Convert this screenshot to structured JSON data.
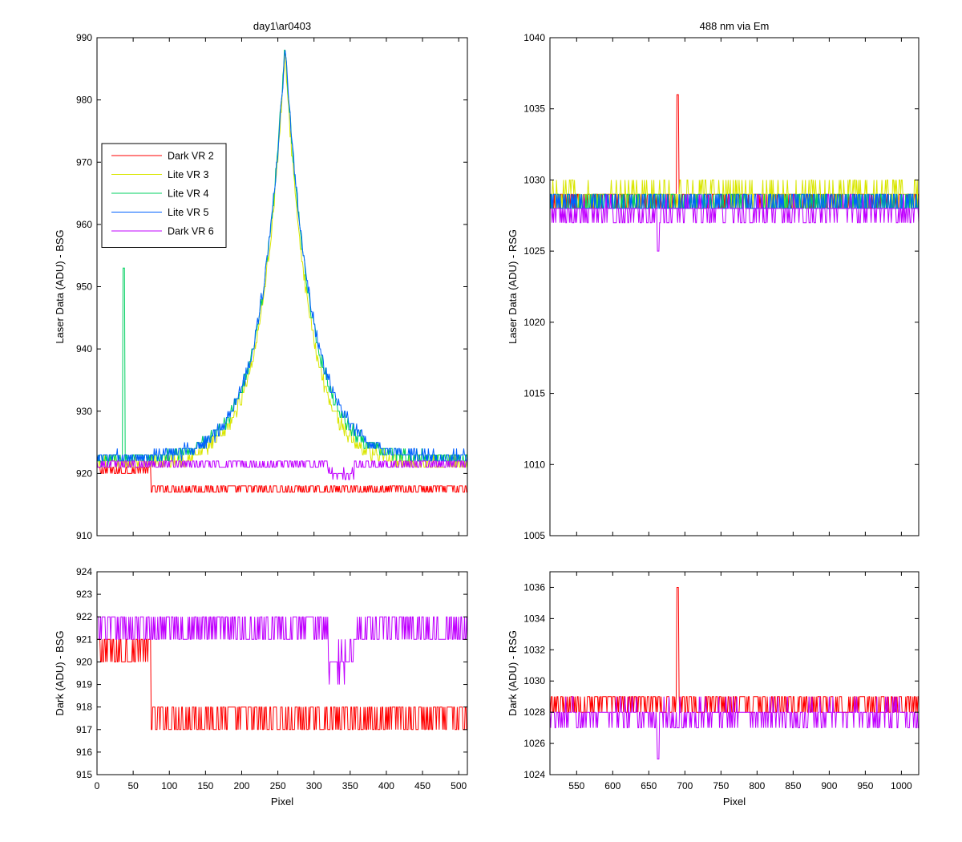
{
  "chart_data": [
    {
      "id": "top-left",
      "type": "line",
      "title": "day1\\ar0403",
      "xlabel": "",
      "ylabel": "Laser Data (ADU) - BSG",
      "xlim": [
        0,
        512
      ],
      "ylim": [
        910,
        990
      ],
      "yticks": [
        910,
        920,
        930,
        940,
        950,
        960,
        970,
        980,
        990
      ],
      "xticks": [
        0,
        50,
        100,
        150,
        200,
        250,
        300,
        350,
        400,
        450,
        500
      ],
      "show_xtick_labels": false,
      "legend": {
        "placement": "upper-left",
        "entries": [
          "Dark VR 2",
          "Lite VR 3",
          "Lite VR 4",
          "Lite VR 5",
          "Dark VR 6"
        ]
      },
      "series": [
        {
          "name": "Dark VR 2",
          "color": "#ff0000",
          "shape": "dark",
          "level": 917.5,
          "start": 920.5,
          "drop_at": 75,
          "noise": 0.9
        },
        {
          "name": "Lite VR 3",
          "color": "#d9e600",
          "shape": "peak",
          "base": 921.5,
          "peak_x": 260,
          "peak_y": 988,
          "left_decay": 33,
          "right_decay": 33,
          "noise": 1.1
        },
        {
          "name": "Lite VR 4",
          "color": "#00d060",
          "shape": "peak",
          "base": 922.3,
          "peak_x": 260,
          "peak_y": 989,
          "left_decay": 34,
          "right_decay": 35,
          "noise": 1.0,
          "spike": {
            "x": 37,
            "y": 953
          }
        },
        {
          "name": "Lite VR 5",
          "color": "#0060ff",
          "shape": "peak",
          "base": 922.5,
          "peak_x": 260,
          "peak_y": 989,
          "left_decay": 34,
          "right_decay": 36,
          "noise": 1.0
        },
        {
          "name": "Dark VR 6",
          "color": "#c000ff",
          "shape": "dark6",
          "level": 921.5,
          "dip_range": [
            320,
            355
          ],
          "dip_level": 920,
          "noise": 0.7
        }
      ]
    },
    {
      "id": "top-right",
      "type": "line",
      "title": "488 nm via Em",
      "xlabel": "",
      "ylabel": "Laser Data (ADU) - RSG",
      "xlim": [
        513,
        1024
      ],
      "ylim": [
        1005,
        1040
      ],
      "yticks": [
        1005,
        1010,
        1015,
        1020,
        1025,
        1030,
        1035,
        1040
      ],
      "xticks": [
        550,
        600,
        650,
        700,
        750,
        800,
        850,
        900,
        950,
        1000
      ],
      "show_xtick_labels": false,
      "series": [
        {
          "name": "Dark VR 2",
          "color": "#ff0000",
          "shape": "flat",
          "level": 1028.5,
          "noise": 0.8,
          "spike": {
            "x": 690,
            "y": 1036
          }
        },
        {
          "name": "Lite VR 3",
          "color": "#d9e600",
          "shape": "flat",
          "level": 1029.0,
          "noise": 0.8
        },
        {
          "name": "Lite VR 4",
          "color": "#00d060",
          "shape": "flat",
          "level": 1028.3,
          "noise": 0.8
        },
        {
          "name": "Lite VR 5",
          "color": "#0060ff",
          "shape": "flat",
          "level": 1028.3,
          "noise": 0.8
        },
        {
          "name": "Dark VR 6",
          "color": "#c000ff",
          "shape": "flat",
          "level": 1027.8,
          "noise": 0.8,
          "dip": {
            "x": 663,
            "y": 1025
          }
        }
      ]
    },
    {
      "id": "bottom-left",
      "type": "line",
      "title": "",
      "xlabel": "Pixel",
      "ylabel": "Dark (ADU) - BSG",
      "xlim": [
        0,
        512
      ],
      "ylim": [
        915,
        924
      ],
      "yticks": [
        915,
        916,
        917,
        918,
        919,
        920,
        921,
        922,
        923,
        924
      ],
      "xticks": [
        0,
        50,
        100,
        150,
        200,
        250,
        300,
        350,
        400,
        450,
        500
      ],
      "show_xtick_labels": true,
      "series": [
        {
          "name": "Dark VR 2",
          "color": "#ff0000",
          "shape": "dark",
          "level": 917.5,
          "start": 920.5,
          "drop_at": 75,
          "noise": 0.9
        },
        {
          "name": "Dark VR 6",
          "color": "#c000ff",
          "shape": "dark6",
          "level": 921.5,
          "dip_range": [
            320,
            355
          ],
          "dip_level": 920,
          "noise": 0.7
        }
      ]
    },
    {
      "id": "bottom-right",
      "type": "line",
      "title": "",
      "xlabel": "Pixel",
      "ylabel": "Dark (ADU) - RSG",
      "xlim": [
        513,
        1024
      ],
      "ylim": [
        1024,
        1037
      ],
      "yticks": [
        1024,
        1026,
        1028,
        1030,
        1032,
        1034,
        1036
      ],
      "xticks": [
        550,
        600,
        650,
        700,
        750,
        800,
        850,
        900,
        950,
        1000
      ],
      "show_xtick_labels": true,
      "series": [
        {
          "name": "Dark VR 2",
          "color": "#ff0000",
          "shape": "flat",
          "level": 1028.5,
          "noise": 0.8,
          "spike": {
            "x": 690,
            "y": 1036
          }
        },
        {
          "name": "Dark VR 6",
          "color": "#c000ff",
          "shape": "flat",
          "level": 1027.8,
          "noise": 0.8,
          "dip": {
            "x": 663,
            "y": 1025
          }
        }
      ]
    }
  ]
}
